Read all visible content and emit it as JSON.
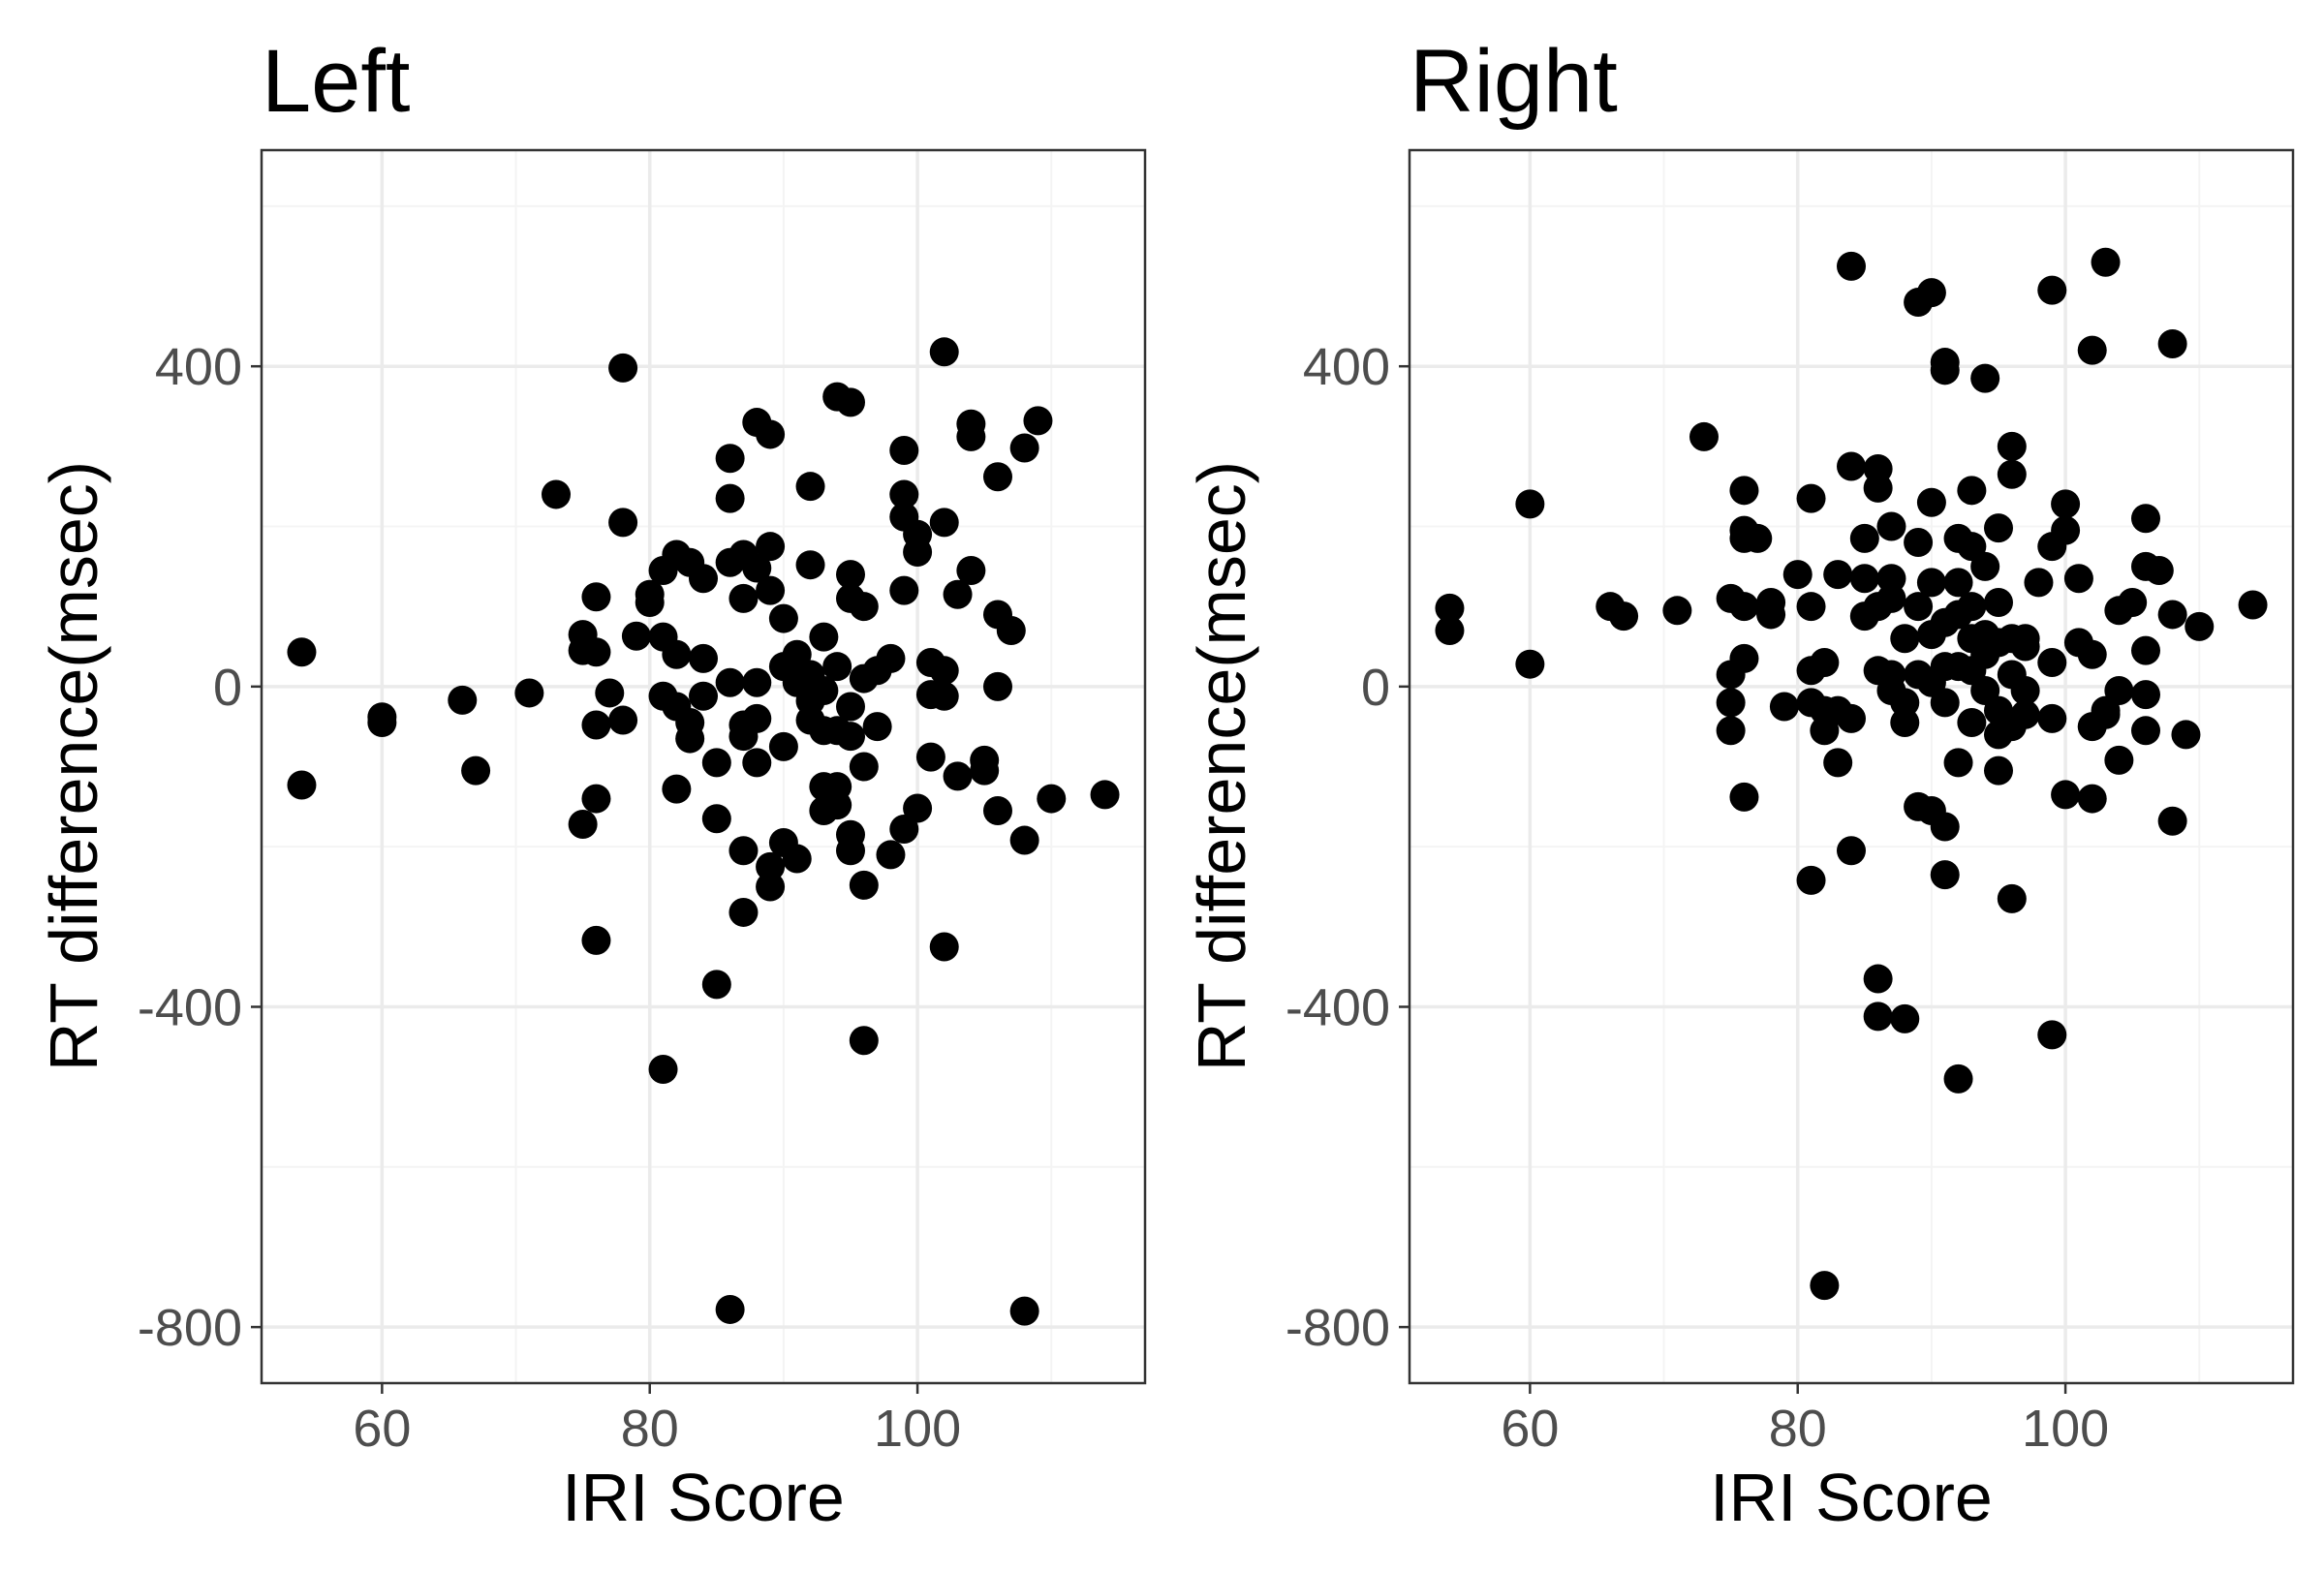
{
  "chart_data": [
    {
      "type": "scatter",
      "title": "Left",
      "xlabel": "IRI Score",
      "ylabel": "RT difference(msec)",
      "xlim": [
        51,
        117
      ],
      "ylim": [
        -870,
        670
      ],
      "xticks": [
        60,
        80,
        100
      ],
      "yticks": [
        -800,
        -400,
        0,
        400
      ],
      "xtick_labels": [
        "60",
        "80",
        "100"
      ],
      "ytick_labels": [
        "-800",
        "-400",
        "0",
        "400"
      ],
      "grid": true,
      "series": [
        {
          "color": "#000000",
          "points": [
            [
              54,
              43
            ],
            [
              54,
              -123
            ],
            [
              60,
              -38
            ],
            [
              60,
              -45
            ],
            [
              66,
              -17
            ],
            [
              67,
              -105
            ],
            [
              71,
              -8
            ],
            [
              73,
              240
            ],
            [
              75,
              65
            ],
            [
              75,
              45
            ],
            [
              75,
              -172
            ],
            [
              76,
              112
            ],
            [
              76,
              43
            ],
            [
              76,
              -48
            ],
            [
              76,
              -140
            ],
            [
              76,
              -317
            ],
            [
              77,
              -8
            ],
            [
              78,
              398
            ],
            [
              78,
              205
            ],
            [
              78,
              -42
            ],
            [
              79,
              63
            ],
            [
              80,
              105
            ],
            [
              80,
              115
            ],
            [
              81,
              145
            ],
            [
              81,
              62
            ],
            [
              81,
              -12
            ],
            [
              81,
              -478
            ],
            [
              82,
              165
            ],
            [
              82,
              40
            ],
            [
              82,
              -25
            ],
            [
              82,
              -128
            ],
            [
              83,
              155
            ],
            [
              83,
              -45
            ],
            [
              83,
              -65
            ],
            [
              84,
              135
            ],
            [
              84,
              35
            ],
            [
              84,
              -12
            ],
            [
              85,
              -95
            ],
            [
              85,
              -165
            ],
            [
              85,
              -372
            ],
            [
              86,
              285
            ],
            [
              86,
              235
            ],
            [
              86,
              155
            ],
            [
              86,
              5
            ],
            [
              86,
              -778
            ],
            [
              87,
              165
            ],
            [
              87,
              110
            ],
            [
              87,
              -48
            ],
            [
              87,
              -62
            ],
            [
              87,
              -205
            ],
            [
              87,
              -282
            ],
            [
              88,
              330
            ],
            [
              88,
              148
            ],
            [
              88,
              5
            ],
            [
              88,
              -40
            ],
            [
              88,
              -95
            ],
            [
              89,
              315
            ],
            [
              89,
              175
            ],
            [
              89,
              120
            ],
            [
              89,
              -225
            ],
            [
              89,
              -250
            ],
            [
              90,
              85
            ],
            [
              90,
              25
            ],
            [
              90,
              -75
            ],
            [
              90,
              -195
            ],
            [
              91,
              40
            ],
            [
              91,
              5
            ],
            [
              91,
              -215
            ],
            [
              92,
              250
            ],
            [
              92,
              152
            ],
            [
              92,
              15
            ],
            [
              92,
              -18
            ],
            [
              92,
              -42
            ],
            [
              93,
              62
            ],
            [
              93,
              -5
            ],
            [
              93,
              -55
            ],
            [
              93,
              -125
            ],
            [
              93,
              -155
            ],
            [
              94,
              362
            ],
            [
              94,
              25
            ],
            [
              94,
              -55
            ],
            [
              94,
              -148
            ],
            [
              94,
              -125
            ],
            [
              95,
              355
            ],
            [
              95,
              140
            ],
            [
              95,
              110
            ],
            [
              95,
              -25
            ],
            [
              95,
              -62
            ],
            [
              95,
              -185
            ],
            [
              95,
              -205
            ],
            [
              96,
              100
            ],
            [
              96,
              10
            ],
            [
              96,
              -100
            ],
            [
              96,
              -248
            ],
            [
              96,
              -442
            ],
            [
              97,
              20
            ],
            [
              97,
              -50
            ],
            [
              98,
              35
            ],
            [
              98,
              -210
            ],
            [
              99,
              295
            ],
            [
              99,
              240
            ],
            [
              99,
              212
            ],
            [
              99,
              120
            ],
            [
              99,
              -178
            ],
            [
              100,
              190
            ],
            [
              100,
              168
            ],
            [
              100,
              -152
            ],
            [
              101,
              30
            ],
            [
              101,
              -10
            ],
            [
              101,
              -88
            ],
            [
              102,
              418
            ],
            [
              102,
              205
            ],
            [
              102,
              20
            ],
            [
              102,
              -12
            ],
            [
              102,
              -325
            ],
            [
              103,
              115
            ],
            [
              103,
              -112
            ],
            [
              104,
              328
            ],
            [
              104,
              312
            ],
            [
              104,
              145
            ],
            [
              105,
              -105
            ],
            [
              105,
              -92
            ],
            [
              106,
              262
            ],
            [
              106,
              90
            ],
            [
              106,
              0
            ],
            [
              106,
              -155
            ],
            [
              107,
              70
            ],
            [
              108,
              298
            ],
            [
              108,
              -192
            ],
            [
              108,
              -780
            ],
            [
              109,
              332
            ],
            [
              110,
              -140
            ],
            [
              114,
              -135
            ]
          ]
        }
      ]
    },
    {
      "type": "scatter",
      "title": "Right",
      "xlabel": "IRI Score",
      "ylabel": "RT difference(msec)",
      "xlim": [
        51,
        117
      ],
      "ylim": [
        -870,
        670
      ],
      "xticks": [
        60,
        80,
        100
      ],
      "yticks": [
        -800,
        -400,
        0,
        400
      ],
      "xtick_labels": [
        "60",
        "80",
        "100"
      ],
      "ytick_labels": [
        "-800",
        "-400",
        "0",
        "400"
      ],
      "grid": true,
      "series": [
        {
          "color": "#000000",
          "points": [
            [
              54,
              98
            ],
            [
              54,
              70
            ],
            [
              60,
              228
            ],
            [
              60,
              28
            ],
            [
              66,
              100
            ],
            [
              67,
              88
            ],
            [
              71,
              95
            ],
            [
              73,
              312
            ],
            [
              75,
              110
            ],
            [
              75,
              15
            ],
            [
              75,
              -20
            ],
            [
              75,
              -55
            ],
            [
              76,
              245
            ],
            [
              76,
              195
            ],
            [
              76,
              185
            ],
            [
              76,
              100
            ],
            [
              76,
              35
            ],
            [
              76,
              -138
            ],
            [
              77,
              185
            ],
            [
              78,
              105
            ],
            [
              78,
              90
            ],
            [
              79,
              -25
            ],
            [
              80,
              140
            ],
            [
              81,
              235
            ],
            [
              81,
              100
            ],
            [
              81,
              20
            ],
            [
              81,
              -20
            ],
            [
              81,
              -242
            ],
            [
              82,
              30
            ],
            [
              82,
              -30
            ],
            [
              82,
              -55
            ],
            [
              82,
              -748
            ],
            [
              83,
              140
            ],
            [
              83,
              -95
            ],
            [
              83,
              -30
            ],
            [
              84,
              525
            ],
            [
              84,
              275
            ],
            [
              84,
              -40
            ],
            [
              84,
              -205
            ],
            [
              85,
              185
            ],
            [
              85,
              135
            ],
            [
              85,
              88
            ],
            [
              86,
              272
            ],
            [
              86,
              248
            ],
            [
              86,
              100
            ],
            [
              86,
              20
            ],
            [
              86,
              -365
            ],
            [
              86,
              -412
            ],
            [
              87,
              200
            ],
            [
              87,
              135
            ],
            [
              87,
              110
            ],
            [
              87,
              15
            ],
            [
              87,
              -5
            ],
            [
              88,
              60
            ],
            [
              88,
              -20
            ],
            [
              88,
              -45
            ],
            [
              88,
              -415
            ],
            [
              89,
              480
            ],
            [
              89,
              180
            ],
            [
              89,
              100
            ],
            [
              89,
              15
            ],
            [
              89,
              -150
            ],
            [
              90,
              492
            ],
            [
              90,
              230
            ],
            [
              90,
              130
            ],
            [
              90,
              65
            ],
            [
              90,
              5
            ],
            [
              90,
              -155
            ],
            [
              91,
              405
            ],
            [
              91,
              395
            ],
            [
              91,
              80
            ],
            [
              91,
              25
            ],
            [
              91,
              -20
            ],
            [
              91,
              -175
            ],
            [
              91,
              -235
            ],
            [
              92,
              185
            ],
            [
              92,
              130
            ],
            [
              92,
              90
            ],
            [
              92,
              25
            ],
            [
              92,
              -95
            ],
            [
              92,
              -490
            ],
            [
              93,
              245
            ],
            [
              93,
              175
            ],
            [
              93,
              100
            ],
            [
              93,
              60
            ],
            [
              93,
              20
            ],
            [
              93,
              -45
            ],
            [
              94,
              385
            ],
            [
              94,
              150
            ],
            [
              94,
              65
            ],
            [
              94,
              40
            ],
            [
              94,
              -5
            ],
            [
              95,
              198
            ],
            [
              95,
              105
            ],
            [
              95,
              55
            ],
            [
              95,
              -30
            ],
            [
              95,
              -60
            ],
            [
              95,
              -105
            ],
            [
              96,
              300
            ],
            [
              96,
              265
            ],
            [
              96,
              60
            ],
            [
              96,
              15
            ],
            [
              96,
              -50
            ],
            [
              96,
              -265
            ],
            [
              97,
              60
            ],
            [
              97,
              50
            ],
            [
              97,
              -5
            ],
            [
              97,
              -35
            ],
            [
              98,
              130
            ],
            [
              99,
              495
            ],
            [
              99,
              175
            ],
            [
              99,
              30
            ],
            [
              99,
              -40
            ],
            [
              99,
              -435
            ],
            [
              100,
              228
            ],
            [
              100,
              195
            ],
            [
              100,
              -135
            ],
            [
              101,
              135
            ],
            [
              101,
              55
            ],
            [
              102,
              420
            ],
            [
              102,
              40
            ],
            [
              102,
              -50
            ],
            [
              102,
              -140
            ],
            [
              103,
              530
            ],
            [
              103,
              -30
            ],
            [
              103,
              -35
            ],
            [
              104,
              95
            ],
            [
              104,
              -5
            ],
            [
              104,
              -92
            ],
            [
              105,
              105
            ],
            [
              106,
              210
            ],
            [
              106,
              150
            ],
            [
              106,
              45
            ],
            [
              106,
              -10
            ],
            [
              106,
              -55
            ],
            [
              107,
              145
            ],
            [
              108,
              428
            ],
            [
              108,
              90
            ],
            [
              108,
              -168
            ],
            [
              109,
              -60
            ],
            [
              110,
              75
            ],
            [
              114,
              102
            ]
          ]
        }
      ]
    }
  ]
}
